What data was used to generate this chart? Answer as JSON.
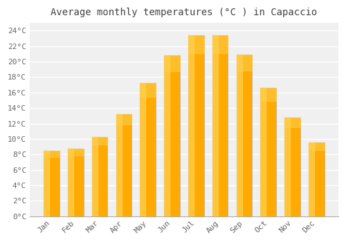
{
  "title": "Average monthly temperatures (°C ) in Capaccio",
  "months": [
    "Jan",
    "Feb",
    "Mar",
    "Apr",
    "May",
    "Jun",
    "Jul",
    "Aug",
    "Sep",
    "Oct",
    "Nov",
    "Dec"
  ],
  "values": [
    8.5,
    8.7,
    10.3,
    13.2,
    17.2,
    20.8,
    23.4,
    23.4,
    20.9,
    16.6,
    12.8,
    9.5
  ],
  "bar_color": "#FFAA00",
  "bar_edge_color": "#AAAAAA",
  "background_color": "#FFFFFF",
  "plot_bg_color": "#F0F0F0",
  "grid_color": "#FFFFFF",
  "tick_label_color": "#666666",
  "title_color": "#444444",
  "ylim": [
    0,
    25
  ],
  "ytick_step": 2,
  "title_fontsize": 10,
  "tick_fontsize": 8,
  "font_family": "monospace"
}
